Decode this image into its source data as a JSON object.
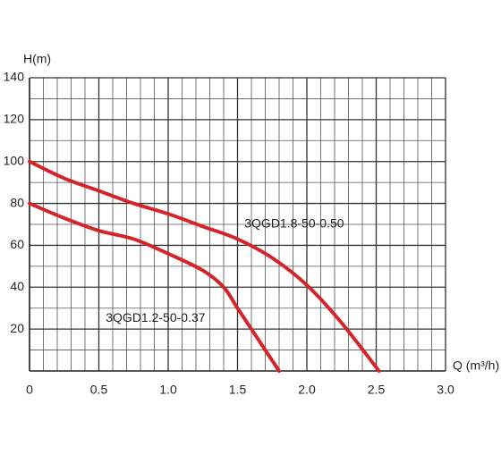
{
  "chart_data": {
    "type": "line",
    "x_label": "Q (m³/h)",
    "y_label": "H(m)",
    "series": [
      {
        "name": "3QGD1.8-50-0.50",
        "color": "#d4252b",
        "x": [
          0,
          0.25,
          0.5,
          0.75,
          1.0,
          1.25,
          1.5,
          1.75,
          2.0,
          2.25,
          2.52
        ],
        "values": [
          100,
          92,
          86,
          80,
          75,
          69,
          63,
          54,
          41,
          23,
          0
        ]
      },
      {
        "name": "3QGD1.2-50-0.37",
        "color": "#d4252b",
        "x": [
          0,
          0.25,
          0.5,
          0.75,
          1.0,
          1.25,
          1.4,
          1.5,
          1.65,
          1.8
        ],
        "values": [
          80,
          73,
          67,
          63,
          56,
          48,
          40,
          30,
          15,
          0
        ]
      }
    ],
    "xlim": [
      0,
      3
    ],
    "ylim": [
      0,
      140
    ],
    "xticks": [
      0,
      0.5,
      {
        "value": 1,
        "label": "1.0"
      },
      1.5,
      {
        "value": 2,
        "label": "2.0"
      },
      2.5,
      {
        "value": 3,
        "label": "3.0"
      }
    ],
    "yticks": [
      20,
      40,
      60,
      80,
      100,
      120,
      140
    ],
    "grid": true
  }
}
